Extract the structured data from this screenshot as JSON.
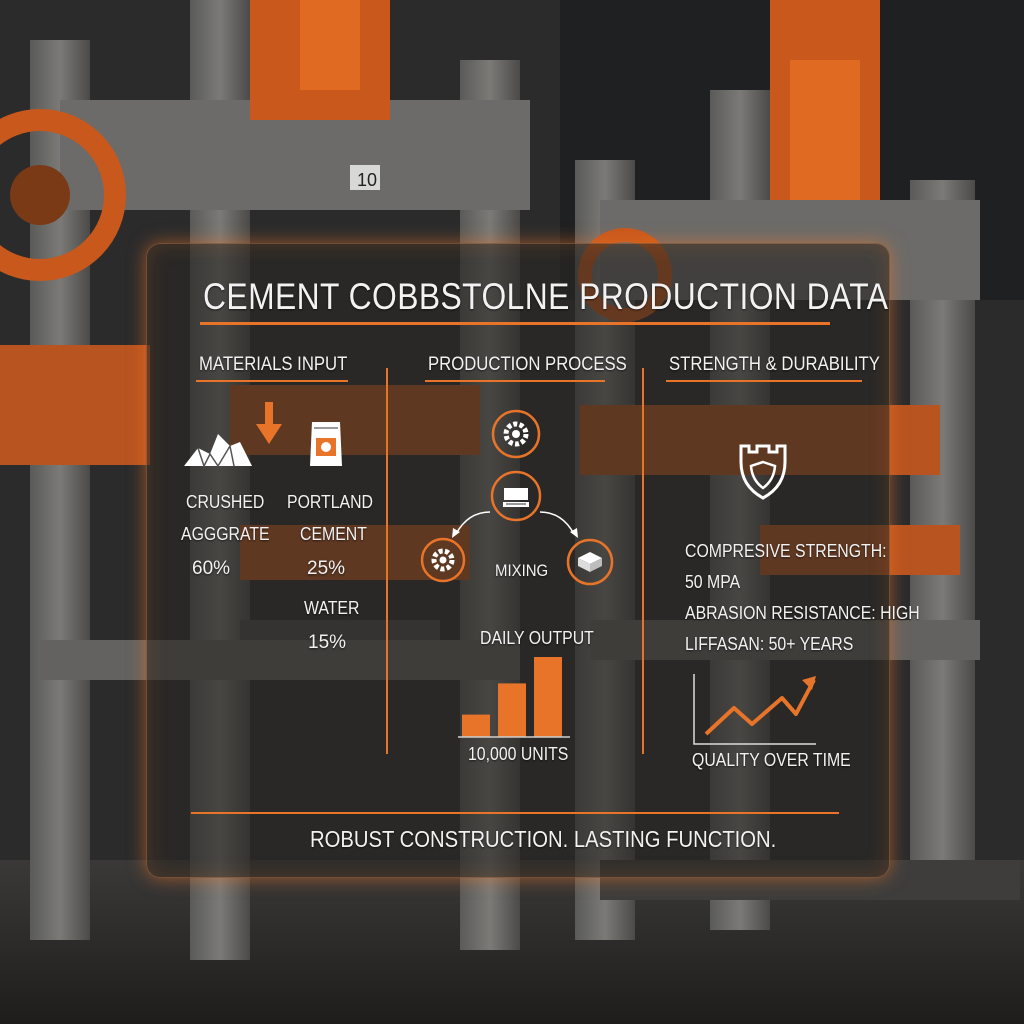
{
  "machine_plate": "10",
  "title": "CEMENT COBBSTOLNE PRODUCTION DATA",
  "materials": {
    "header": "MATERIALS INPUT",
    "aggregate_label_line1": "CRUSHED",
    "aggregate_label_line2": "AGGGRATE",
    "aggregate_pct": "60%",
    "cement_label_line1": "PORTLAND",
    "cement_label_line2": "CEMENT",
    "cement_pct": "25%",
    "water_label": "WATER",
    "water_pct": "15%"
  },
  "process": {
    "header": "PRODUCTION PROCESS",
    "mixing_label": "MIXING",
    "output_label": "DAILY OUTPUT",
    "output_value": "10,000 UNITS",
    "output_bars": [
      0.28,
      0.67,
      1.0
    ]
  },
  "strength": {
    "header": "STRENGTH & DURABILITY",
    "compressive_label": "COMPRESIVE STRENGTH:",
    "compressive_value": "50 MPA",
    "abrasion": "ABRASION RESISTANCE: HIGH",
    "lifespan": "LIFFASAN: 50+ YEARS",
    "quality_label": "QUALITY OVER TIME"
  },
  "footer": "ROBUST CONSTRUCTION. LASTING FUNCTION.",
  "colors": {
    "accent": "#e8742a",
    "text": "#f2f2f2",
    "panel": "#28262a"
  },
  "icons": [
    "aggregate-pile-icon",
    "down-arrow-icon",
    "cement-bag-icon",
    "gear-icon",
    "mold-box-icon",
    "brick-icon",
    "shield-tower-icon",
    "trend-up-icon"
  ]
}
